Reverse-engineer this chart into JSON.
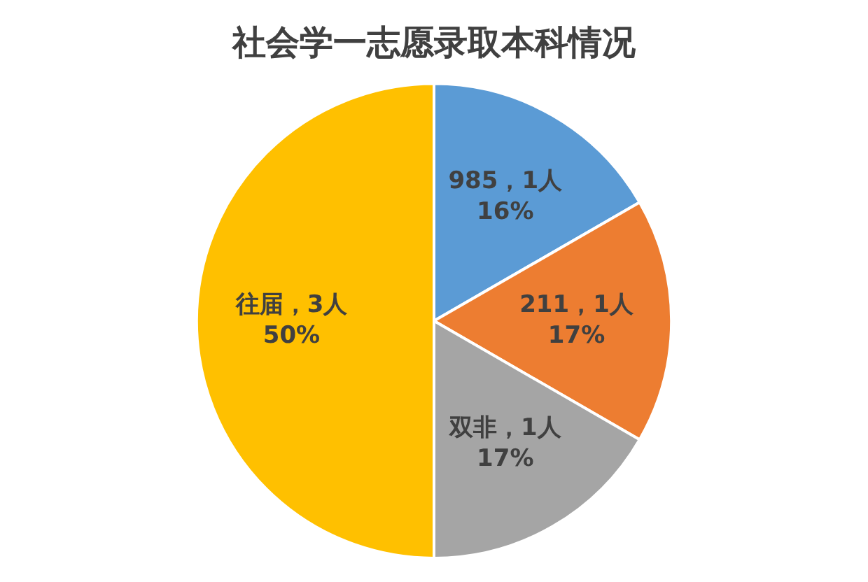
{
  "chart_data": {
    "type": "pie",
    "title": "社会学一志愿录取本科情况",
    "categories": [
      "985",
      "211",
      "双非",
      "往届"
    ],
    "values": [
      1,
      1,
      1,
      3
    ],
    "colors": [
      "#5b9bd5",
      "#ed7d31",
      "#a5a5a5",
      "#ffc000"
    ],
    "value_labels": [
      "，1人\n16%",
      "，1人\n17%",
      "，1人\n17%",
      "，3人\n50%"
    ],
    "legend": false
  }
}
